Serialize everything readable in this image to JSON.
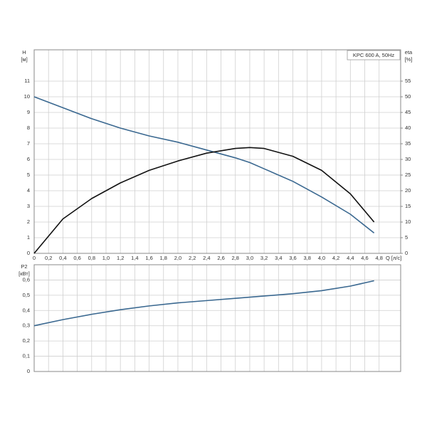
{
  "chart_data": [
    {
      "type": "line",
      "y_label": "H",
      "y_unit": "[м]",
      "y2_label": "eta",
      "y2_unit": "[%]",
      "x_label": "Q [л/с]",
      "annotation": "KPC 600 A, 50Hz",
      "x": [
        0,
        0.4,
        0.8,
        1.2,
        1.6,
        2.0,
        2.4,
        2.8,
        3.0,
        3.2,
        3.6,
        4.0,
        4.4,
        4.73
      ],
      "series": [
        {
          "color": "#3a6890",
          "axis": "y",
          "values": [
            10,
            9.3,
            8.6,
            8.0,
            7.5,
            7.1,
            6.6,
            6.1,
            5.8,
            5.4,
            4.6,
            3.6,
            2.5,
            1.3
          ]
        },
        {
          "color": "#111111",
          "axis": "y2",
          "values": [
            0,
            11,
            17.5,
            22.5,
            26.5,
            29.5,
            32,
            33.5,
            33.8,
            33.5,
            31,
            26.5,
            19,
            10
          ]
        }
      ],
      "xlim": [
        0,
        5.1
      ],
      "ylim": [
        0,
        13
      ],
      "y2lim": [
        0,
        65
      ],
      "grid": true,
      "xticks": [
        0,
        {
          "value": 0.2,
          "label": "0,2"
        },
        {
          "value": 0.4,
          "label": "0,4"
        },
        {
          "value": 0.6,
          "label": "0,6"
        },
        {
          "value": 0.8,
          "label": "0,8"
        },
        {
          "value": 1.0,
          "label": "1,0"
        },
        {
          "value": 1.2,
          "label": "1,2"
        },
        {
          "value": 1.4,
          "label": "1,4"
        },
        {
          "value": 1.6,
          "label": "1,6"
        },
        {
          "value": 1.8,
          "label": "1,8"
        },
        {
          "value": 2.0,
          "label": "2,0"
        },
        {
          "value": 2.2,
          "label": "2,2"
        },
        {
          "value": 2.4,
          "label": "2,4"
        },
        {
          "value": 2.6,
          "label": "2,6"
        },
        {
          "value": 2.8,
          "label": "2,8"
        },
        {
          "value": 3.0,
          "label": "3,0"
        },
        {
          "value": 3.2,
          "label": "3,2"
        },
        {
          "value": 3.4,
          "label": "3,4"
        },
        {
          "value": 3.6,
          "label": "3,6"
        },
        {
          "value": 3.8,
          "label": "3,8"
        },
        {
          "value": 4.0,
          "label": "4,0"
        },
        {
          "value": 4.2,
          "label": "4,2"
        },
        {
          "value": 4.4,
          "label": "4,4"
        },
        {
          "value": 4.6,
          "label": "4,6"
        },
        {
          "value": 4.8,
          "label": "4,8"
        }
      ],
      "yticks": [
        0,
        1,
        2,
        3,
        4,
        5,
        6,
        7,
        8,
        9,
        10,
        11
      ],
      "y2ticks": [
        0,
        5,
        10,
        15,
        20,
        25,
        30,
        35,
        40,
        45,
        50,
        55
      ]
    },
    {
      "type": "line",
      "y_label": "P2",
      "y_unit": "[кВт]",
      "x": [
        0,
        0.4,
        0.8,
        1.2,
        1.6,
        2.0,
        2.4,
        2.8,
        3.2,
        3.6,
        4.0,
        4.4,
        4.73
      ],
      "series": [
        {
          "color": "#3a6890",
          "values": [
            0.3,
            0.34,
            0.375,
            0.405,
            0.43,
            0.45,
            0.465,
            0.48,
            0.495,
            0.51,
            0.53,
            0.56,
            0.595
          ]
        }
      ],
      "xlim": [
        0,
        5.1
      ],
      "ylim": [
        0,
        0.7
      ],
      "grid": true,
      "yticks": [
        0,
        {
          "value": 0.1,
          "label": "0,1"
        },
        {
          "value": 0.2,
          "label": "0,2"
        },
        {
          "value": 0.3,
          "label": "0,3"
        },
        {
          "value": 0.4,
          "label": "0,4"
        },
        {
          "value": 0.5,
          "label": "0,5"
        },
        {
          "value": 0.6,
          "label": "0,6"
        }
      ]
    }
  ]
}
